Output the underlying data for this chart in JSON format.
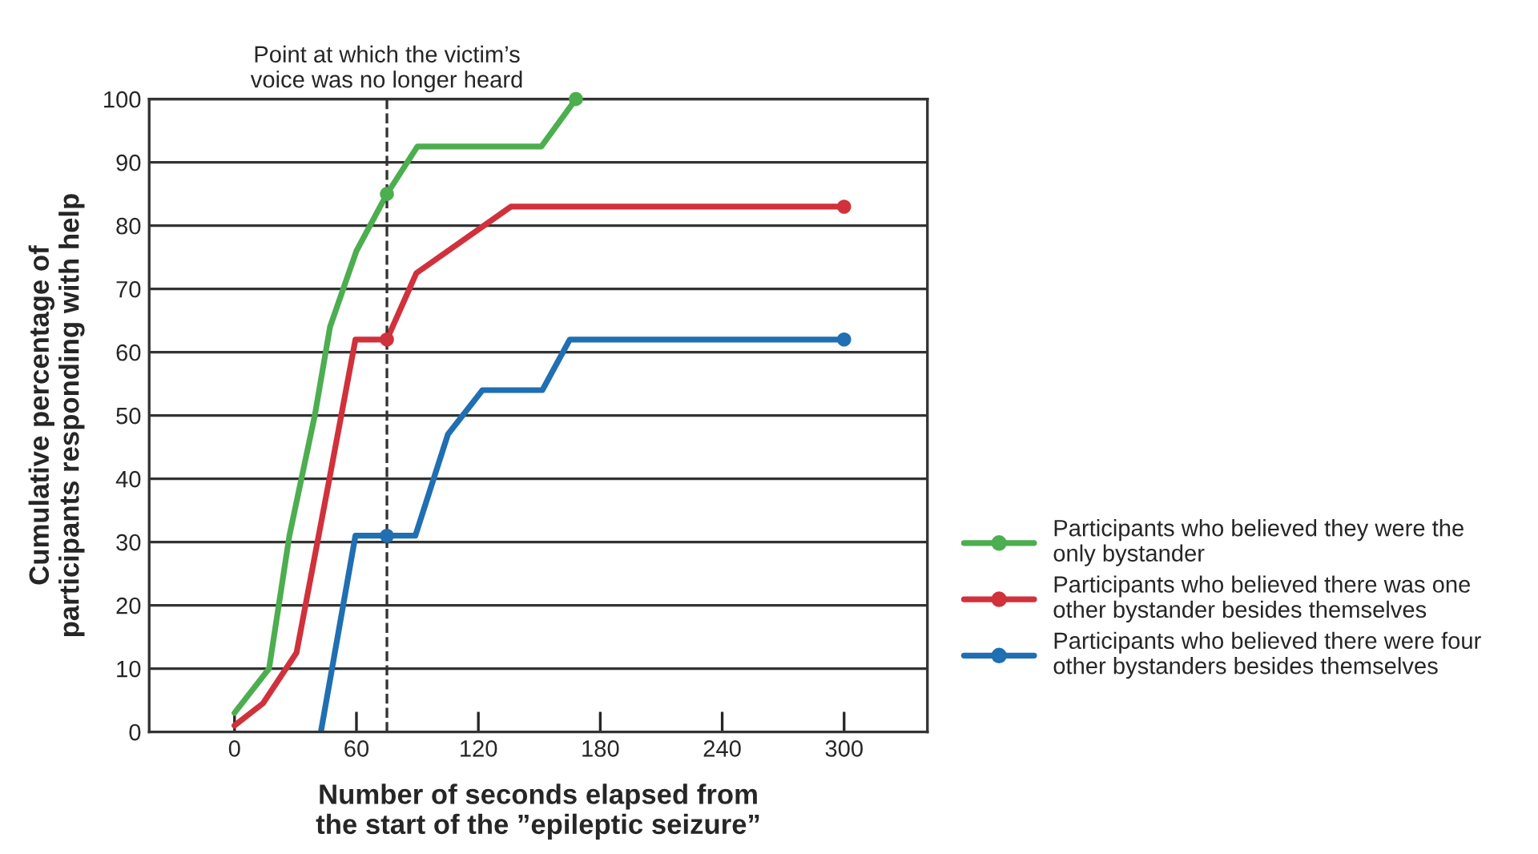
{
  "chart_data": {
    "type": "line",
    "xlabel": "Number of seconds elapsed from\nthe start of the ”epileptic seizure”",
    "ylabel": "Cumulative percentage of\nparticipants responding with help",
    "xlim": [
      -42,
      341
    ],
    "xticks": [
      0,
      60,
      120,
      180,
      240,
      300
    ],
    "ylim": [
      0,
      100
    ],
    "yticks": [
      0,
      10,
      20,
      30,
      40,
      50,
      60,
      70,
      80,
      90,
      100
    ],
    "grid": "y",
    "legend": "right",
    "ref_lines": [
      {
        "axis": "x",
        "value": 75,
        "label": "Point at which the victim’s\nvoice was no longer heard",
        "line_style": "dashed",
        "color": "#333333"
      }
    ],
    "series": [
      {
        "name": "Participants who believed they were the\nonly bystander",
        "color": "#4cae4f",
        "x": [
          0,
          17,
          27,
          39.5,
          47,
          60,
          75,
          90,
          151,
          168
        ],
        "values": [
          3,
          10,
          31,
          50,
          64,
          76,
          85,
          92.5,
          92.5,
          100
        ]
      },
      {
        "name": "Participants who believed there was one\nother bystander besides themselves",
        "color": "#d0313b",
        "x": [
          0,
          14,
          30.5,
          47,
          59.5,
          75,
          89.5,
          136,
          300
        ],
        "values": [
          1,
          4.5,
          12.5,
          40.5,
          62,
          62,
          72.5,
          83,
          83
        ]
      },
      {
        "name": "Participants who believed there were four\nother bystanders besides themselves",
        "color": "#1f6fb2",
        "x": [
          42.5,
          59.5,
          75,
          89,
          105,
          122,
          151.5,
          165,
          300
        ],
        "values": [
          0,
          31,
          31,
          31,
          47,
          54,
          54,
          62,
          62
        ]
      },
      {
        "type": "scatter",
        "marker": "circle",
        "color": "#4cae4f",
        "x": [
          75,
          168
        ],
        "values": [
          85,
          100
        ]
      },
      {
        "type": "scatter",
        "marker": "circle",
        "color": "#d0313b",
        "x": [
          75,
          300
        ],
        "values": [
          62,
          83
        ]
      },
      {
        "type": "scatter",
        "marker": "circle",
        "color": "#1f6fb2",
        "x": [
          75,
          300
        ],
        "values": [
          31,
          62
        ]
      }
    ]
  }
}
